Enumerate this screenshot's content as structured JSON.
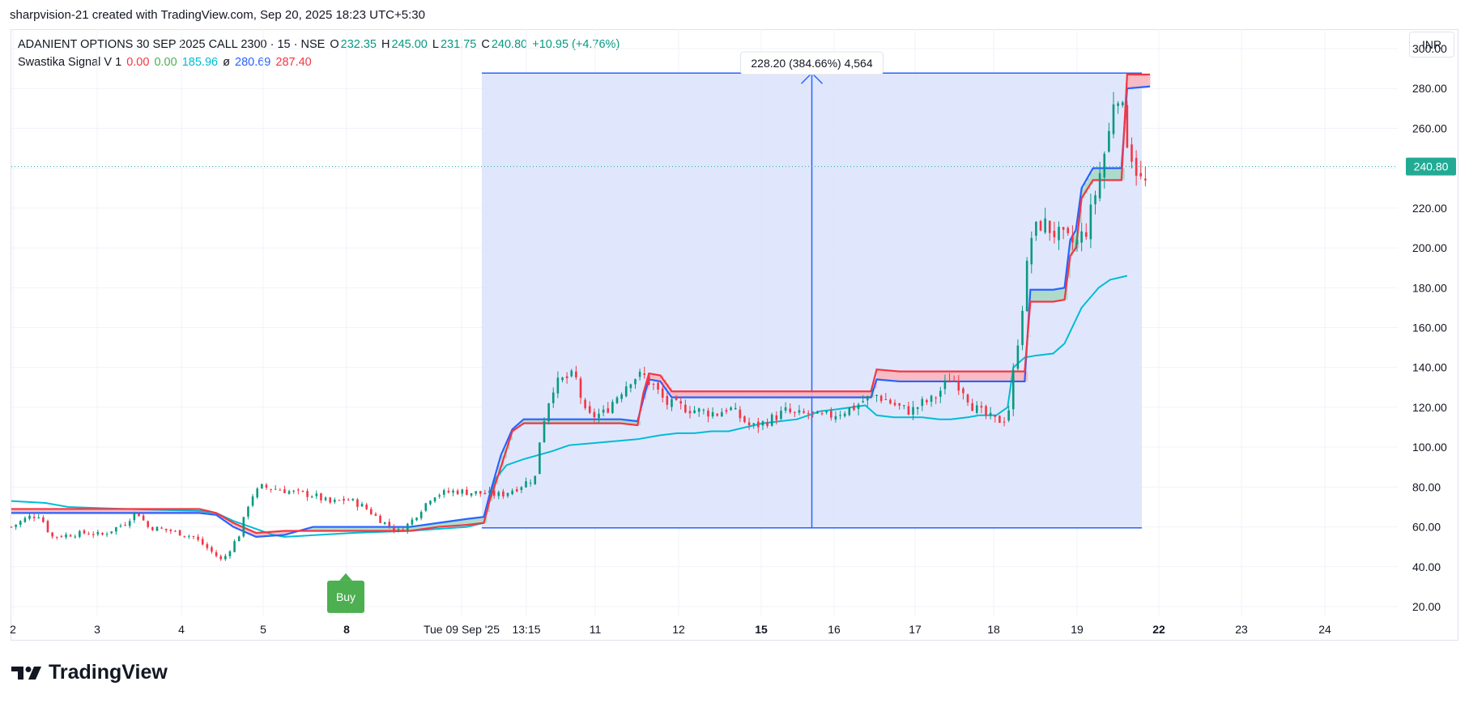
{
  "header": {
    "attribution": "sharpvision-21 created with TradingView.com, Sep 20, 2025 18:23 UTC+5:30"
  },
  "legend": {
    "symbol": "ADANIENT OPTIONS 30 SEP 2025 CALL 2300 · 15 · NSE",
    "o_label": "O",
    "o_value": "232.35",
    "h_label": "H",
    "h_value": "245.00",
    "l_label": "L",
    "l_value": "231.75",
    "c_label": "C",
    "c_value": "240.80",
    "change": "+10.95 (+4.76%)",
    "indicator_name": "Swastika Signal V 1",
    "ind_v1": "0.00",
    "ind_v2": "0.00",
    "ind_v3": "185.96",
    "ind_sym": "ø",
    "ind_v4": "280.69",
    "ind_v5": "287.40"
  },
  "currency_button": "INR",
  "brand": {
    "name": "TradingView"
  },
  "colors": {
    "up": "#089981",
    "down": "#f23645",
    "upper_band": "#f23645",
    "lower_band": "#2962ff",
    "trail": "#00bcd4",
    "measure": "#2962ff",
    "measure_fill": "#dbe3fb",
    "buy": "#4caf50",
    "price_label": "#22ab94"
  },
  "chart_data": {
    "type": "candlestick",
    "y_axis": {
      "min": 20,
      "max": 300,
      "step": 20,
      "ticks": [
        "300.00",
        "280.00",
        "260.00",
        "240.00",
        "220.00",
        "200.00",
        "180.00",
        "160.00",
        "140.00",
        "120.00",
        "100.00",
        "80.00",
        "60.00",
        "40.00",
        "20.00"
      ]
    },
    "x_axis": {
      "ticks": [
        {
          "label": "2",
          "bold": false
        },
        {
          "label": "3",
          "bold": false
        },
        {
          "label": "4",
          "bold": false
        },
        {
          "label": "5",
          "bold": false
        },
        {
          "label": "8",
          "bold": true
        },
        {
          "label": "Tue 09 Sep '25",
          "bold": false
        },
        {
          "label": "13:15",
          "bold": false
        },
        {
          "label": "11",
          "bold": false
        },
        {
          "label": "12",
          "bold": false
        },
        {
          "label": "15",
          "bold": true
        },
        {
          "label": "16",
          "bold": false
        },
        {
          "label": "17",
          "bold": false
        },
        {
          "label": "18",
          "bold": false
        },
        {
          "label": "19",
          "bold": false
        },
        {
          "label": "22",
          "bold": true
        },
        {
          "label": "23",
          "bold": false
        },
        {
          "label": "24",
          "bold": false
        }
      ]
    },
    "last_price": "240.80",
    "measure": {
      "label": "228.20 (384.66%) 4,564",
      "from_price": 59.5,
      "to_price": 287.7
    },
    "signal": {
      "label": "Buy",
      "price": 42
    },
    "close_path": [
      [
        0,
        60
      ],
      [
        6,
        65
      ],
      [
        10,
        66
      ],
      [
        14,
        55
      ],
      [
        20,
        56
      ],
      [
        26,
        57
      ],
      [
        32,
        56
      ],
      [
        40,
        62
      ],
      [
        44,
        68
      ],
      [
        48,
        60
      ],
      [
        56,
        58
      ],
      [
        64,
        55
      ],
      [
        70,
        48
      ],
      [
        74,
        43
      ],
      [
        76,
        47
      ],
      [
        80,
        56
      ],
      [
        84,
        75
      ],
      [
        88,
        80
      ],
      [
        94,
        79
      ],
      [
        100,
        77
      ],
      [
        106,
        76
      ],
      [
        112,
        72
      ],
      [
        118,
        74
      ],
      [
        124,
        70
      ],
      [
        130,
        63
      ],
      [
        136,
        58
      ],
      [
        140,
        62
      ],
      [
        148,
        76
      ],
      [
        156,
        78
      ],
      [
        164,
        77
      ],
      [
        172,
        76
      ],
      [
        178,
        80
      ],
      [
        184,
        85
      ],
      [
        186,
        108
      ],
      [
        190,
        130
      ],
      [
        194,
        134
      ],
      [
        198,
        136
      ],
      [
        202,
        115
      ],
      [
        208,
        117
      ],
      [
        214,
        128
      ],
      [
        218,
        135
      ],
      [
        222,
        136
      ],
      [
        226,
        130
      ],
      [
        230,
        122
      ],
      [
        236,
        120
      ],
      [
        242,
        118
      ],
      [
        248,
        117
      ],
      [
        252,
        120
      ],
      [
        256,
        115
      ],
      [
        260,
        110
      ],
      [
        264,
        112
      ],
      [
        268,
        115
      ],
      [
        272,
        118
      ],
      [
        276,
        116
      ],
      [
        280,
        117
      ],
      [
        284,
        115
      ],
      [
        288,
        116
      ],
      [
        292,
        118
      ],
      [
        296,
        120
      ],
      [
        300,
        124
      ],
      [
        304,
        126
      ],
      [
        308,
        123
      ],
      [
        312,
        120
      ],
      [
        316,
        118
      ],
      [
        320,
        122
      ],
      [
        324,
        124
      ],
      [
        330,
        135
      ],
      [
        334,
        130
      ],
      [
        338,
        120
      ],
      [
        342,
        116
      ],
      [
        346,
        113
      ],
      [
        350,
        115
      ],
      [
        356,
        180
      ],
      [
        358,
        205
      ],
      [
        362,
        213
      ],
      [
        366,
        208
      ],
      [
        370,
        204
      ],
      [
        374,
        202
      ],
      [
        378,
        210
      ],
      [
        382,
        235
      ],
      [
        386,
        260
      ],
      [
        388,
        285
      ],
      [
        390,
        270
      ],
      [
        392,
        255
      ],
      [
        394,
        245
      ],
      [
        396,
        236
      ],
      [
        398,
        230
      ],
      [
        400,
        240.8
      ]
    ],
    "upper_band": [
      [
        0,
        69
      ],
      [
        66,
        69
      ],
      [
        72,
        67
      ],
      [
        78,
        62
      ],
      [
        86,
        57
      ],
      [
        96,
        58
      ],
      [
        106,
        58
      ],
      [
        120,
        58
      ],
      [
        140,
        58
      ],
      [
        150,
        60
      ],
      [
        160,
        61
      ],
      [
        166,
        62
      ],
      [
        168,
        73
      ],
      [
        172,
        90
      ],
      [
        176,
        108
      ],
      [
        180,
        112
      ],
      [
        204,
        112
      ],
      [
        214,
        112
      ],
      [
        220,
        111
      ],
      [
        222,
        127
      ],
      [
        224,
        137
      ],
      [
        228,
        136
      ],
      [
        232,
        128
      ],
      [
        280,
        128
      ],
      [
        302,
        128
      ],
      [
        304,
        139
      ],
      [
        312,
        138
      ],
      [
        356,
        138
      ],
      [
        358,
        173
      ],
      [
        366,
        173
      ],
      [
        370,
        174
      ],
      [
        372,
        196
      ],
      [
        374,
        200
      ],
      [
        376,
        225
      ],
      [
        380,
        234
      ],
      [
        390,
        234
      ],
      [
        392,
        287
      ],
      [
        400,
        287
      ]
    ],
    "lower_band": [
      [
        0,
        67
      ],
      [
        66,
        67
      ],
      [
        72,
        66
      ],
      [
        78,
        60
      ],
      [
        86,
        55
      ],
      [
        96,
        56
      ],
      [
        106,
        60
      ],
      [
        120,
        60
      ],
      [
        140,
        60
      ],
      [
        150,
        62
      ],
      [
        160,
        64
      ],
      [
        166,
        65
      ],
      [
        168,
        76
      ],
      [
        172,
        96
      ],
      [
        176,
        109
      ],
      [
        180,
        114
      ],
      [
        204,
        114
      ],
      [
        214,
        114
      ],
      [
        220,
        113
      ],
      [
        222,
        124
      ],
      [
        224,
        134
      ],
      [
        228,
        133
      ],
      [
        232,
        125
      ],
      [
        280,
        125
      ],
      [
        302,
        125
      ],
      [
        304,
        134
      ],
      [
        312,
        133
      ],
      [
        356,
        133
      ],
      [
        358,
        179
      ],
      [
        366,
        179
      ],
      [
        370,
        180
      ],
      [
        372,
        204
      ],
      [
        374,
        209
      ],
      [
        376,
        230
      ],
      [
        380,
        240
      ],
      [
        390,
        240
      ],
      [
        392,
        280
      ],
      [
        400,
        281
      ]
    ],
    "trail": [
      [
        0,
        73
      ],
      [
        12,
        72
      ],
      [
        20,
        70
      ],
      [
        40,
        69
      ],
      [
        66,
        68
      ],
      [
        72,
        67
      ],
      [
        78,
        63
      ],
      [
        86,
        59
      ],
      [
        92,
        56
      ],
      [
        96,
        55
      ],
      [
        120,
        57
      ],
      [
        140,
        58
      ],
      [
        150,
        59
      ],
      [
        160,
        60
      ],
      [
        166,
        62
      ],
      [
        170,
        84
      ],
      [
        174,
        91
      ],
      [
        180,
        94
      ],
      [
        190,
        98
      ],
      [
        196,
        101
      ],
      [
        204,
        102
      ],
      [
        212,
        103
      ],
      [
        220,
        104
      ],
      [
        228,
        106
      ],
      [
        234,
        107
      ],
      [
        240,
        107
      ],
      [
        246,
        108
      ],
      [
        252,
        108
      ],
      [
        258,
        110
      ],
      [
        264,
        112
      ],
      [
        270,
        113
      ],
      [
        276,
        114
      ],
      [
        280,
        116
      ],
      [
        284,
        118
      ],
      [
        290,
        119
      ],
      [
        300,
        121
      ],
      [
        304,
        116
      ],
      [
        310,
        115
      ],
      [
        320,
        115
      ],
      [
        326,
        114
      ],
      [
        330,
        114
      ],
      [
        336,
        115
      ],
      [
        340,
        116
      ],
      [
        346,
        116
      ],
      [
        350,
        120
      ],
      [
        352,
        140
      ],
      [
        356,
        145
      ],
      [
        360,
        146
      ],
      [
        366,
        147
      ],
      [
        370,
        152
      ],
      [
        376,
        170
      ],
      [
        382,
        180
      ],
      [
        386,
        184
      ],
      [
        392,
        186
      ]
    ]
  }
}
